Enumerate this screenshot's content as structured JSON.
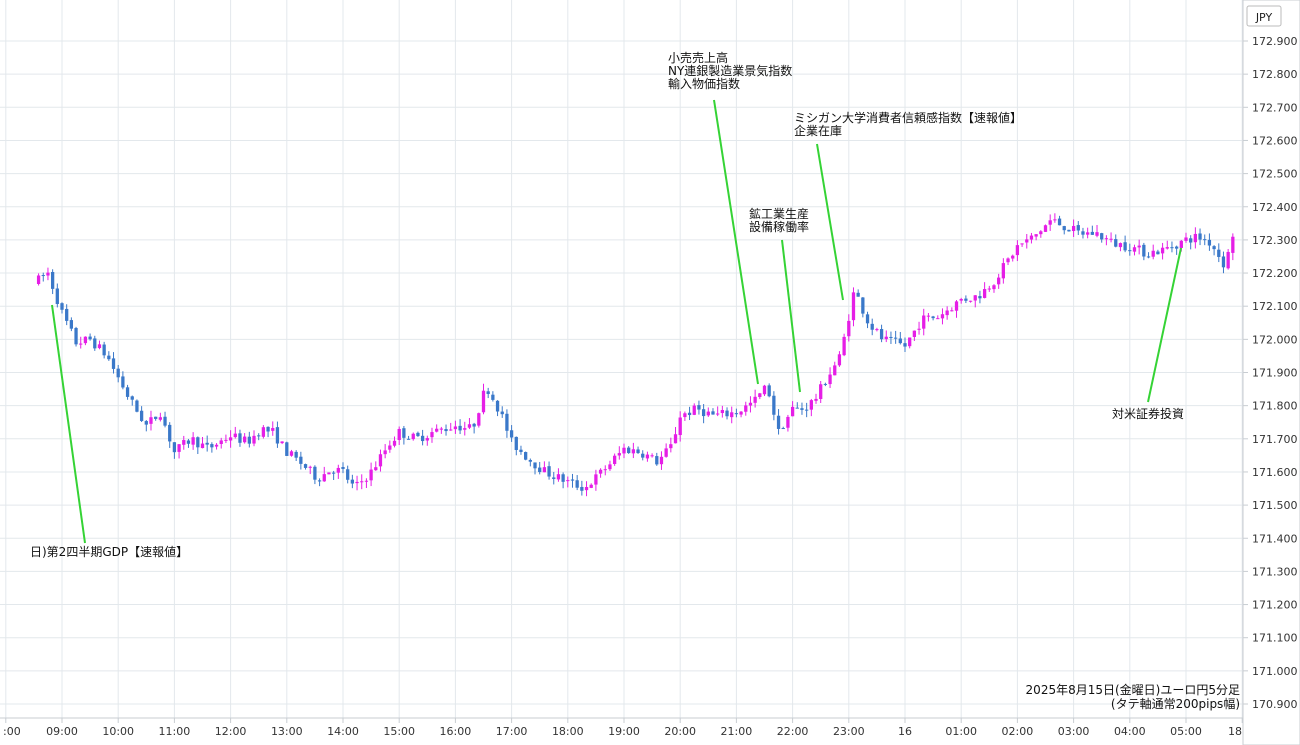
{
  "chart_data": {
    "type": "candlestick",
    "currency": "JPY",
    "ylim": [
      170.9,
      172.9
    ],
    "y_ticks": [
      "172.900",
      "172.800",
      "172.700",
      "172.600",
      "172.500",
      "172.400",
      "172.300",
      "172.200",
      "172.100",
      "172.000",
      "171.900",
      "171.800",
      "171.700",
      "171.600",
      "171.500",
      "171.400",
      "171.300",
      "171.200",
      "171.100",
      "171.000",
      "170.900"
    ],
    "x_ticks": [
      ":00",
      "09:00",
      "10:00",
      "11:00",
      "12:00",
      "13:00",
      "14:00",
      "15:00",
      "16:00",
      "17:00",
      "18:00",
      "19:00",
      "20:00",
      "21:00",
      "22:00",
      "23:00",
      "16",
      "01:00",
      "02:00",
      "03:00",
      "04:00",
      "05:00",
      "18"
    ],
    "grid": true,
    "colors": {
      "up": "#e61ee6",
      "down": "#3a78c9",
      "pointer": "#35d335",
      "grid": "#e3e8ec"
    },
    "series": [
      {
        "hour": 8.5,
        "value": 172.17
      },
      {
        "hour": 8.75,
        "value": 172.2
      },
      {
        "hour": 9.0,
        "value": 172.08
      },
      {
        "hour": 9.25,
        "value": 171.99
      },
      {
        "hour": 9.5,
        "value": 172.0
      },
      {
        "hour": 9.8,
        "value": 171.95
      },
      {
        "hour": 10.2,
        "value": 171.82
      },
      {
        "hour": 10.5,
        "value": 171.74
      },
      {
        "hour": 10.75,
        "value": 171.78
      },
      {
        "hour": 11.0,
        "value": 171.66
      },
      {
        "hour": 11.3,
        "value": 171.7
      },
      {
        "hour": 11.6,
        "value": 171.67
      },
      {
        "hour": 12.0,
        "value": 171.71
      },
      {
        "hour": 12.3,
        "value": 171.69
      },
      {
        "hour": 12.55,
        "value": 171.73
      },
      {
        "hour": 12.75,
        "value": 171.72
      },
      {
        "hour": 13.0,
        "value": 171.66
      },
      {
        "hour": 13.3,
        "value": 171.62
      },
      {
        "hour": 13.55,
        "value": 171.58
      },
      {
        "hour": 13.8,
        "value": 171.61
      },
      {
        "hour": 14.0,
        "value": 171.6
      },
      {
        "hour": 14.2,
        "value": 171.55
      },
      {
        "hour": 14.5,
        "value": 171.6
      },
      {
        "hour": 14.8,
        "value": 171.68
      },
      {
        "hour": 15.0,
        "value": 171.72
      },
      {
        "hour": 15.3,
        "value": 171.7
      },
      {
        "hour": 15.6,
        "value": 171.72
      },
      {
        "hour": 16.0,
        "value": 171.74
      },
      {
        "hour": 16.3,
        "value": 171.73
      },
      {
        "hour": 16.55,
        "value": 171.86
      },
      {
        "hour": 16.8,
        "value": 171.78
      },
      {
        "hour": 17.0,
        "value": 171.69
      },
      {
        "hour": 17.3,
        "value": 171.64
      },
      {
        "hour": 17.6,
        "value": 171.6
      },
      {
        "hour": 18.0,
        "value": 171.57
      },
      {
        "hour": 18.3,
        "value": 171.55
      },
      {
        "hour": 18.6,
        "value": 171.6
      },
      {
        "hour": 19.0,
        "value": 171.67
      },
      {
        "hour": 19.3,
        "value": 171.66
      },
      {
        "hour": 19.6,
        "value": 171.63
      },
      {
        "hour": 19.85,
        "value": 171.68
      },
      {
        "hour": 20.0,
        "value": 171.77
      },
      {
        "hour": 20.3,
        "value": 171.79
      },
      {
        "hour": 20.6,
        "value": 171.77
      },
      {
        "hour": 21.0,
        "value": 171.78
      },
      {
        "hour": 21.3,
        "value": 171.81
      },
      {
        "hour": 21.55,
        "value": 171.86
      },
      {
        "hour": 21.75,
        "value": 171.72
      },
      {
        "hour": 22.0,
        "value": 171.79
      },
      {
        "hour": 22.2,
        "value": 171.79
      },
      {
        "hour": 22.4,
        "value": 171.82
      },
      {
        "hour": 22.6,
        "value": 171.88
      },
      {
        "hour": 22.85,
        "value": 171.95
      },
      {
        "hour": 23.1,
        "value": 172.15
      },
      {
        "hour": 23.35,
        "value": 172.05
      },
      {
        "hour": 23.6,
        "value": 172.0
      },
      {
        "hour": 24.0,
        "value": 171.98
      },
      {
        "hour": 24.3,
        "value": 172.06
      },
      {
        "hour": 24.6,
        "value": 172.07
      },
      {
        "hour": 25.0,
        "value": 172.12
      },
      {
        "hour": 25.3,
        "value": 172.13
      },
      {
        "hour": 25.6,
        "value": 172.18
      },
      {
        "hour": 26.0,
        "value": 172.28
      },
      {
        "hour": 26.3,
        "value": 172.31
      },
      {
        "hour": 26.6,
        "value": 172.36
      },
      {
        "hour": 26.85,
        "value": 172.34
      },
      {
        "hour": 27.1,
        "value": 172.32
      },
      {
        "hour": 27.4,
        "value": 172.32
      },
      {
        "hour": 27.7,
        "value": 172.29
      },
      {
        "hour": 28.0,
        "value": 172.28
      },
      {
        "hour": 28.3,
        "value": 172.26
      },
      {
        "hour": 28.6,
        "value": 172.27
      },
      {
        "hour": 29.0,
        "value": 172.3
      },
      {
        "hour": 29.2,
        "value": 172.31
      },
      {
        "hour": 29.45,
        "value": 172.29
      },
      {
        "hour": 29.7,
        "value": 172.22
      },
      {
        "hour": 29.85,
        "value": 172.33
      }
    ],
    "annotations": [
      {
        "lines": [
          "日)第2四半期GDP【速報値】"
        ]
      },
      {
        "lines": [
          "小売売上高",
          "NY連銀製造業景気指数",
          "輸入物価指数"
        ]
      },
      {
        "lines": [
          "ミシガン大学消費者信頼感指数【速報値】",
          "企業在庫"
        ]
      },
      {
        "lines": [
          "鉱工業生産",
          "設備稼働率"
        ]
      },
      {
        "lines": [
          "対米証券投資"
        ]
      }
    ],
    "footer": [
      "2025年8月15日(金曜日)ユーロ円5分足",
      "(タテ軸通常200pips幅)"
    ]
  }
}
